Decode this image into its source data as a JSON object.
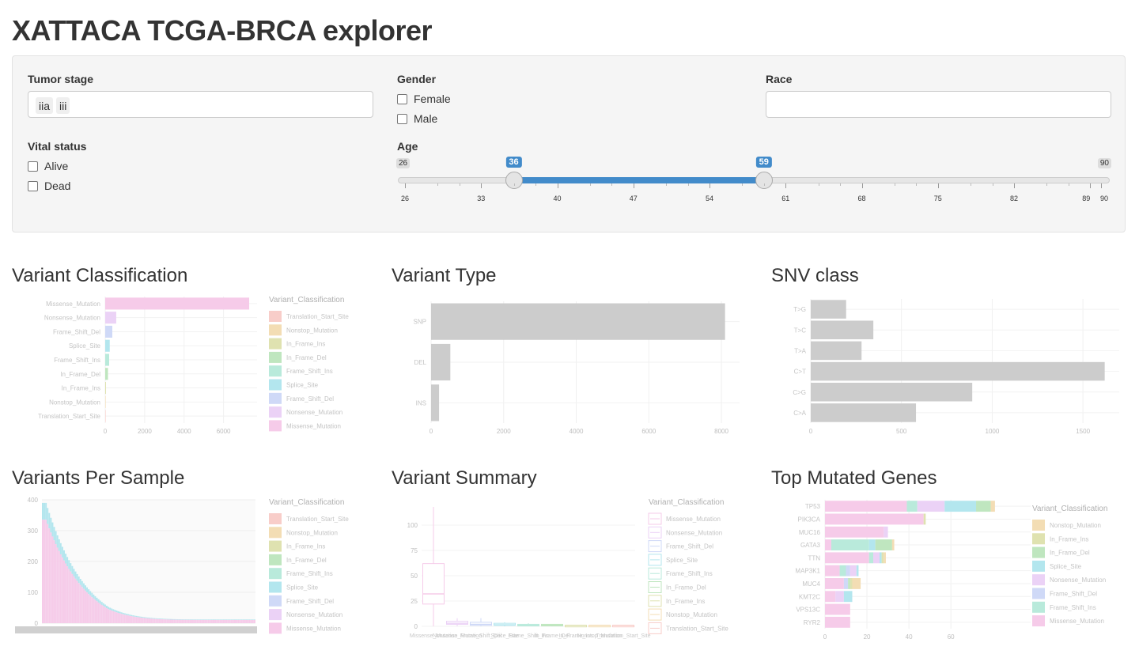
{
  "app": {
    "title": "XATTACA TCGA-BRCA explorer"
  },
  "filters": {
    "tumor_stage": {
      "label": "Tumor stage",
      "tags": [
        "iia",
        "iii"
      ]
    },
    "gender": {
      "label": "Gender",
      "options": [
        "Female",
        "Male"
      ]
    },
    "race": {
      "label": "Race",
      "value": ""
    },
    "vital_status": {
      "label": "Vital status",
      "options": [
        "Alive",
        "Dead"
      ]
    },
    "age": {
      "label": "Age",
      "min": 26,
      "max": 90,
      "from": 36,
      "to": 59,
      "tick_labels": [
        "26",
        "33",
        "40",
        "47",
        "54",
        "61",
        "68",
        "75",
        "82",
        "89",
        "90"
      ]
    }
  },
  "panels": {
    "variant_classification": "Variant Classification",
    "variant_type": "Variant Type",
    "snv_class": "SNV class",
    "variants_per_sample": "Variants Per Sample",
    "variant_summary": "Variant Summary",
    "top_mutated_genes": "Top Mutated Genes"
  },
  "colors": {
    "accent": "#428bca",
    "Translation_Start_Site": "#f8cdc9",
    "Nonstop_Mutation": "#f3ddb4",
    "In_Frame_Ins": "#dfe2b0",
    "In_Frame_Del": "#bfe6bf",
    "Frame_Shift_Ins": "#b9eadb",
    "Splice_Site": "#b3e6ee",
    "Frame_Shift_Del": "#cfd9f7",
    "Nonsense_Mutation": "#ebd2f6",
    "Missense_Mutation": "#f6cbe9",
    "grey_bar": "#cccccc"
  },
  "chart_data": [
    {
      "type": "bar",
      "title": "Variant Classification",
      "orientation": "horizontal",
      "categories": [
        "Missense_Mutation",
        "Nonsense_Mutation",
        "Frame_Shift_Del",
        "Splice_Site",
        "Frame_Shift_Ins",
        "In_Frame_Del",
        "In_Frame_Ins",
        "Nonstop_Mutation",
        "Translation_Start_Site"
      ],
      "values": [
        7300,
        560,
        360,
        230,
        200,
        140,
        40,
        12,
        8
      ],
      "xticks": [
        0,
        2000,
        4000,
        6000
      ],
      "xlim": [
        0,
        7700
      ],
      "legend_title": "Variant_Classification",
      "legend": [
        "Translation_Start_Site",
        "Nonstop_Mutation",
        "In_Frame_Ins",
        "In_Frame_Del",
        "Frame_Shift_Ins",
        "Splice_Site",
        "Frame_Shift_Del",
        "Nonsense_Mutation",
        "Missense_Mutation"
      ]
    },
    {
      "type": "bar",
      "title": "Variant Type",
      "orientation": "horizontal",
      "categories": [
        "SNP",
        "DEL",
        "INS"
      ],
      "values": [
        8100,
        530,
        220
      ],
      "xticks": [
        0,
        2000,
        4000,
        6000,
        8000
      ],
      "xlim": [
        0,
        8500
      ]
    },
    {
      "type": "bar",
      "title": "SNV class",
      "orientation": "horizontal",
      "categories": [
        "T>G",
        "T>C",
        "T>A",
        "C>T",
        "C>G",
        "C>A"
      ],
      "values": [
        195,
        345,
        280,
        1620,
        890,
        580
      ],
      "xticks": [
        0,
        500,
        1000,
        1500
      ],
      "xlim": [
        0,
        1700
      ]
    },
    {
      "type": "bar",
      "title": "Variants Per Sample",
      "orientation": "vertical",
      "yticks": [
        0,
        100,
        200,
        300,
        400
      ],
      "ylim": [
        0,
        400
      ],
      "max_value": 390,
      "min_value": 12,
      "legend_title": "Variant_Classification",
      "legend": [
        "Translation_Start_Site",
        "Nonstop_Mutation",
        "In_Frame_Ins",
        "In_Frame_Del",
        "Frame_Shift_Ins",
        "Splice_Site",
        "Frame_Shift_Del",
        "Nonsense_Mutation",
        "Missense_Mutation"
      ]
    },
    {
      "type": "box",
      "title": "Variant Summary",
      "categories": [
        "Missense_Mutation",
        "Nonsense_Mutation",
        "Frame_Shift_Del",
        "Splice_Site",
        "Frame_Shift_Ins",
        "In_Frame_Del",
        "In_Frame_Ins",
        "Nonstop_Mutation",
        "Translation_Start_Site"
      ],
      "medians": [
        32,
        3,
        2,
        1.5,
        1,
        1,
        1,
        1,
        1
      ],
      "q1": [
        22,
        2,
        1,
        1,
        1,
        1,
        1,
        1,
        1
      ],
      "q3": [
        62,
        5,
        4,
        3,
        2,
        2,
        1,
        1,
        1
      ],
      "whisker_high": [
        118,
        8,
        8,
        4,
        3,
        2,
        1,
        1,
        1
      ],
      "yticks": [
        0,
        25,
        50,
        75,
        100
      ],
      "ylim": [
        0,
        125
      ],
      "legend_title": "Variant_Classification",
      "legend": [
        "Missense_Mutation",
        "Nonsense_Mutation",
        "Frame_Shift_Del",
        "Splice_Site",
        "Frame_Shift_Ins",
        "In_Frame_Del",
        "In_Frame_Ins",
        "Nonstop_Mutation",
        "Translation_Start_Site"
      ]
    },
    {
      "type": "bar",
      "title": "Top Mutated Genes",
      "orientation": "horizontal",
      "stacked": true,
      "categories": [
        "TP53",
        "PIK3CA",
        "MUC16",
        "GATA3",
        "TTN",
        "MAP3K1",
        "MUC4",
        "KMT2C",
        "VPS13C",
        "RYR2"
      ],
      "series": [
        {
          "name": "Missense_Mutation",
          "values": [
            39,
            47,
            28,
            3,
            21,
            7,
            9,
            5,
            12,
            12
          ]
        },
        {
          "name": "Frame_Shift_Ins",
          "values": [
            5,
            0,
            0,
            18,
            2,
            3,
            0,
            0,
            0,
            0
          ]
        },
        {
          "name": "Frame_Shift_Del",
          "values": [
            0,
            0,
            0,
            0,
            0,
            2,
            2,
            0,
            0,
            0
          ]
        },
        {
          "name": "Nonsense_Mutation",
          "values": [
            13,
            0,
            2,
            0,
            3,
            3,
            0,
            4,
            0,
            0
          ]
        },
        {
          "name": "Splice_Site",
          "values": [
            15,
            0,
            0,
            3,
            1,
            1,
            0,
            4,
            0,
            0
          ]
        },
        {
          "name": "In_Frame_Del",
          "values": [
            7,
            0,
            0,
            8,
            0,
            0,
            1,
            0,
            0,
            0
          ]
        },
        {
          "name": "In_Frame_Ins",
          "values": [
            0,
            1,
            0,
            0,
            1,
            0,
            1,
            0,
            0,
            0
          ]
        },
        {
          "name": "Nonstop_Mutation",
          "values": [
            2,
            0,
            0,
            1,
            1,
            0,
            4,
            0,
            0,
            0
          ]
        }
      ],
      "xticks": [
        0,
        20,
        40,
        60
      ],
      "xlim": [
        0,
        98
      ],
      "legend_title": "Variant_Classification",
      "legend": [
        "Nonstop_Mutation",
        "In_Frame_Ins",
        "In_Frame_Del",
        "Splice_Site",
        "Nonsense_Mutation",
        "Frame_Shift_Del",
        "Frame_Shift_Ins",
        "Missense_Mutation"
      ]
    }
  ]
}
